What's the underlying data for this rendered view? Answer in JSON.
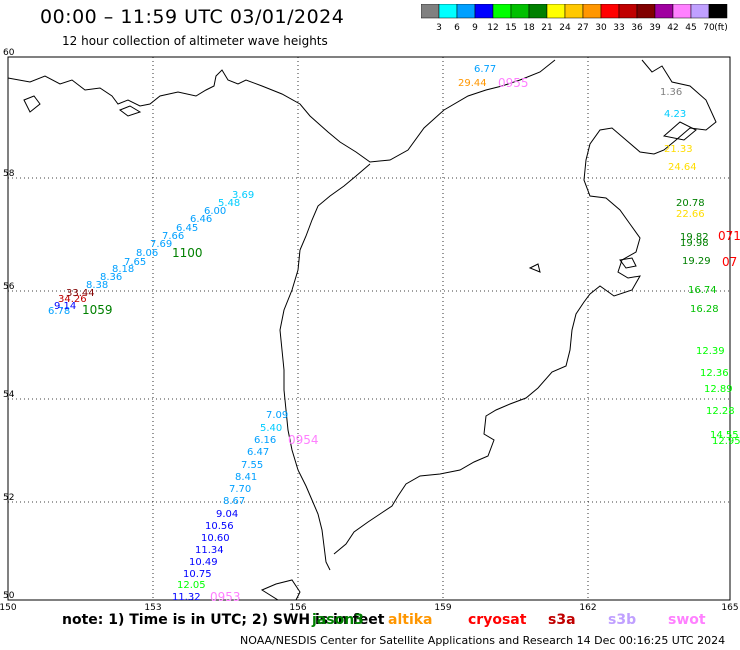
{
  "header": {
    "title": "00:00 – 11:59 UTC 03/01/2024",
    "subtitle": "12 hour collection of altimeter wave heights"
  },
  "colorbar": {
    "unit": "(ft)",
    "stops": [
      {
        "label": "3",
        "color": "#808080"
      },
      {
        "label": "6",
        "color": "#00ffff"
      },
      {
        "label": "9",
        "color": "#00a0ff"
      },
      {
        "label": "12",
        "color": "#0000ff"
      },
      {
        "label": "15",
        "color": "#00ff00"
      },
      {
        "label": "18",
        "color": "#00c000"
      },
      {
        "label": "21",
        "color": "#008000"
      },
      {
        "label": "24",
        "color": "#ffff00"
      },
      {
        "label": "27",
        "color": "#ffc800"
      },
      {
        "label": "30",
        "color": "#ff9600"
      },
      {
        "label": "33",
        "color": "#ff0000"
      },
      {
        "label": "36",
        "color": "#c00000"
      },
      {
        "label": "39",
        "color": "#800000"
      },
      {
        "label": "42",
        "color": "#a000a0"
      },
      {
        "label": "45",
        "color": "#ff80ff"
      },
      {
        "label": "70",
        "color": "#c0a0ff"
      },
      {
        "label": "",
        "color": "#000000"
      }
    ]
  },
  "axes": {
    "lat_ticks": [
      "60",
      "58",
      "56",
      "54",
      "52",
      "50"
    ],
    "lon_ticks": [
      "150",
      "153",
      "156",
      "159",
      "162",
      "165"
    ]
  },
  "tracks": [
    {
      "name": "track-west",
      "time": "1059",
      "time_color": "#008000",
      "points": [
        {
          "v": "6.78",
          "c": "#00a0ff"
        },
        {
          "v": "9.14",
          "c": "#0000ff"
        },
        {
          "v": "34.26",
          "c": "#c00000"
        },
        {
          "v": "33.44",
          "c": "#800000"
        },
        {
          "v": "8.38",
          "c": "#00a0ff"
        },
        {
          "v": "8.36",
          "c": "#00a0ff"
        },
        {
          "v": "8.18",
          "c": "#00a0ff"
        },
        {
          "v": "7.65",
          "c": "#00a0ff"
        },
        {
          "v": "8.06",
          "c": "#00a0ff"
        },
        {
          "v": "7.69",
          "c": "#00a0ff"
        },
        {
          "v": "7.66",
          "c": "#00a0ff"
        },
        {
          "v": "6.45",
          "c": "#00a0ff"
        },
        {
          "v": "6.46",
          "c": "#00a0ff"
        },
        {
          "v": "6.00",
          "c": "#00a0ff"
        },
        {
          "v": "5.48",
          "c": "#00ccff"
        },
        {
          "v": "3.69",
          "c": "#00ccff"
        }
      ],
      "extra_time": "1100",
      "extra_time_color": "#008000"
    },
    {
      "name": "track-south",
      "time": "0954",
      "time_color": "#ff80ff",
      "points": [
        {
          "v": "7.09",
          "c": "#00a0ff"
        },
        {
          "v": "5.40",
          "c": "#00ccff"
        },
        {
          "v": "6.16",
          "c": "#00a0ff"
        },
        {
          "v": "6.47",
          "c": "#00a0ff"
        },
        {
          "v": "7.55",
          "c": "#00a0ff"
        },
        {
          "v": "8.41",
          "c": "#00a0ff"
        },
        {
          "v": "7.70",
          "c": "#00a0ff"
        },
        {
          "v": "8.67",
          "c": "#00a0ff"
        },
        {
          "v": "9.04",
          "c": "#0000ff"
        },
        {
          "v": "10.56",
          "c": "#0000ff"
        },
        {
          "v": "10.60",
          "c": "#0000ff"
        },
        {
          "v": "11.34",
          "c": "#0000ff"
        },
        {
          "v": "10.49",
          "c": "#0000ff"
        },
        {
          "v": "10.75",
          "c": "#0000ff"
        },
        {
          "v": "12.05",
          "c": "#00ff00"
        },
        {
          "v": "11.32",
          "c": "#0000ff"
        }
      ],
      "end_time": "0953",
      "end_time_color": "#ff80ff"
    },
    {
      "name": "track-north",
      "time": "0955",
      "time_color": "#ff80ff",
      "points": [
        {
          "v": "6.77",
          "c": "#00a0ff"
        },
        {
          "v": "29.44",
          "c": "#ff9600"
        }
      ]
    },
    {
      "name": "track-east",
      "points": [
        {
          "v": "1.36",
          "c": "#808080"
        },
        {
          "v": "4.23",
          "c": "#00ccff"
        },
        {
          "v": "21.33",
          "c": "#ffdd00"
        },
        {
          "v": "24.64",
          "c": "#ffdd00"
        },
        {
          "v": "20.78",
          "c": "#008000"
        },
        {
          "v": "22.66",
          "c": "#ffdd00"
        },
        {
          "v": "19.82",
          "c": "#008000"
        },
        {
          "v": "19.98",
          "c": "#008000"
        },
        {
          "v": "19.29",
          "c": "#008000"
        },
        {
          "v": "16.74",
          "c": "#00c000"
        },
        {
          "v": "16.28",
          "c": "#00c000"
        },
        {
          "v": "12.39",
          "c": "#00ff00"
        },
        {
          "v": "12.36",
          "c": "#00ff00"
        },
        {
          "v": "12.89",
          "c": "#00ff00"
        },
        {
          "v": "12.28",
          "c": "#00ff00"
        },
        {
          "v": "14.55",
          "c": "#00ff00"
        },
        {
          "v": "12.95",
          "c": "#00ff00"
        }
      ],
      "times": [
        {
          "t": "071",
          "c": "#ff0000"
        },
        {
          "t": "07",
          "c": "#ff0000"
        }
      ]
    }
  ],
  "note": "note:  1) Time is in UTC;  2) SWH is in feet",
  "satellites": [
    {
      "name": "jason3",
      "label": "jason3",
      "color": "#008000"
    },
    {
      "name": "altika",
      "label": "altika",
      "color": "#ff9600"
    },
    {
      "name": "cryosat",
      "label": "cryosat",
      "color": "#ff0000"
    },
    {
      "name": "s3a",
      "label": "s3a",
      "color": "#c00000"
    },
    {
      "name": "s3b",
      "label": "s3b",
      "color": "#c0a0ff"
    },
    {
      "name": "swot",
      "label": "swot",
      "color": "#ff80ff"
    }
  ],
  "footer": "NOAA/NESDIS Center for Satellite Applications and Research    14 Dec 00:16:25 UTC 2024"
}
